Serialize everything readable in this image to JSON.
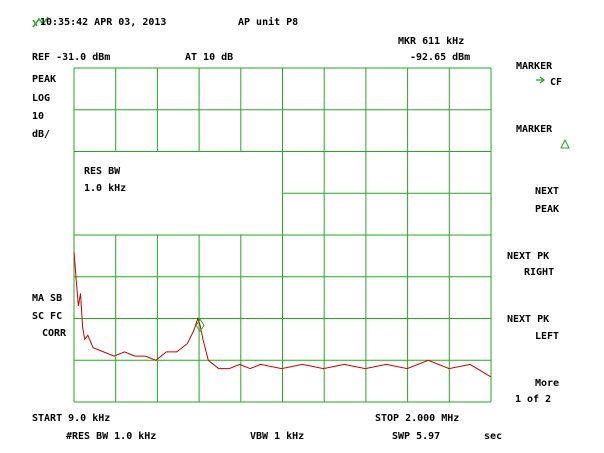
{
  "chart_data": {
    "type": "line",
    "title": "AP unit P8",
    "timestamp": "10:35:42 APR 03, 2013",
    "marker_frequency": "MKR 611 kHz",
    "marker_level": "-92.65 dBm",
    "reference": "REF -31.0 dBm",
    "attenuation": "AT 10 dB",
    "left_labels": [
      "PEAK",
      "LOG",
      "10",
      "dB/"
    ],
    "box_labels": [
      "RES BW",
      "1.0 kHz"
    ],
    "lower_left_labels": [
      "MA SB",
      "SC FC",
      "CORR"
    ],
    "start": "START 9.0 kHz",
    "stop": "STOP 2.000 MHz",
    "footer": [
      "#RES BW 1.0 kHz",
      "VBW 1 kHz",
      "SWP 5.97",
      "sec"
    ],
    "softkeys": [
      "MARKER",
      "CF",
      "MARKER",
      "NEXT",
      "PEAK",
      "NEXT PK",
      "RIGHT",
      "NEXT PK",
      "LEFT",
      "More",
      "1 of 2"
    ],
    "xlim": [
      9,
      2000
    ],
    "ylim": [
      -111,
      -31
    ],
    "x": [
      9,
      20,
      30,
      40,
      50,
      60,
      75,
      100,
      150,
      200,
      250,
      300,
      350,
      400,
      450,
      500,
      550,
      580,
      600,
      611,
      625,
      650,
      700,
      750,
      800,
      850,
      900,
      1000,
      1100,
      1200,
      1300,
      1400,
      1500,
      1600,
      1700,
      1800,
      1900,
      2000
    ],
    "values": [
      -75,
      -82,
      -88,
      -85,
      -93,
      -96,
      -95,
      -98,
      -99,
      -100,
      -99,
      -100,
      -100,
      -101,
      -99,
      -99,
      -97,
      -94,
      -91,
      -92.65,
      -96,
      -101,
      -103,
      -103,
      -102,
      -103,
      -102,
      -103,
      -102,
      -103,
      -102,
      -103,
      -102,
      -103,
      -101,
      -103,
      -102,
      -105
    ],
    "color": "#cc0000",
    "grid_color": "#22aa22",
    "marker": {
      "x": 611,
      "value": -92.65,
      "color": "#22aa22"
    }
  }
}
